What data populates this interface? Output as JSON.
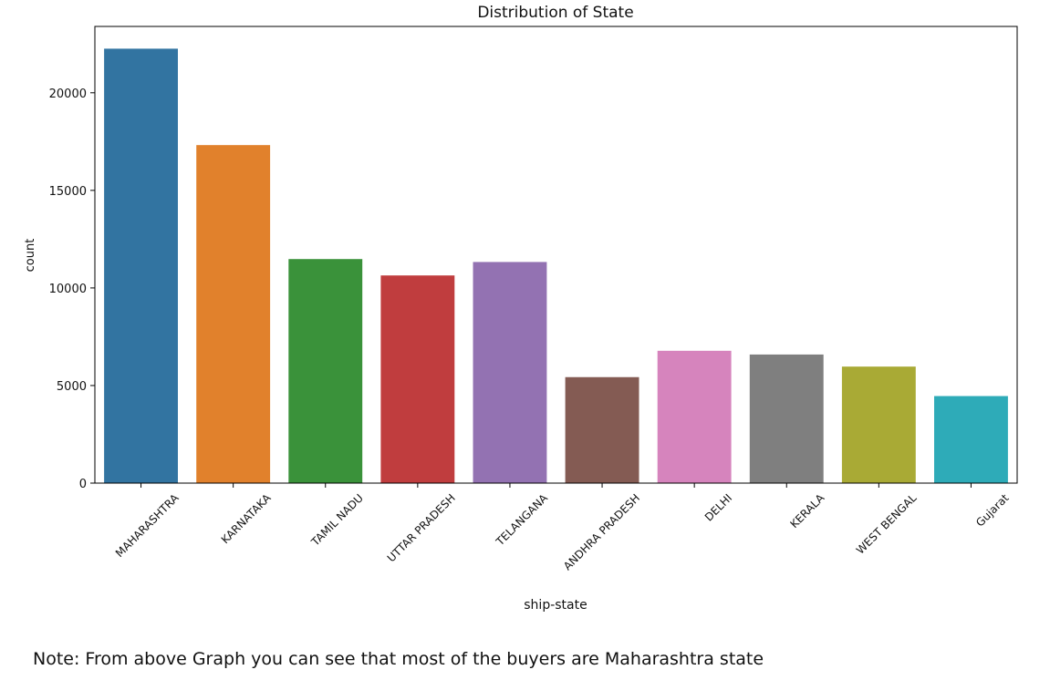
{
  "chart_data": {
    "type": "bar",
    "title": "Distribution of  State",
    "xlabel": "ship-state",
    "ylabel": "count",
    "categories": [
      "MAHARASHTRA",
      "KARNATAKA",
      "TAMIL NADU",
      "UTTAR PRADESH",
      "TELANGANA",
      "ANDHRA PRADESH",
      "DELHI",
      "KERALA",
      "WEST BENGAL",
      "Gujarat"
    ],
    "values": [
      22260,
      17320,
      11480,
      10640,
      11330,
      5430,
      6780,
      6590,
      5970,
      4460
    ],
    "colors": [
      "#3274a1",
      "#e1812c",
      "#3a923a",
      "#c03d3e",
      "#9372b2",
      "#845b53",
      "#d684bd",
      "#7f7f7f",
      "#a9aa35",
      "#2eabb8"
    ],
    "ylim": [
      0,
      23400
    ],
    "yticks": [
      0,
      5000,
      10000,
      15000,
      20000
    ],
    "grid": false,
    "legend": "none"
  },
  "note": "Note: From above Graph you can see that most of the buyers are Maharashtra state"
}
